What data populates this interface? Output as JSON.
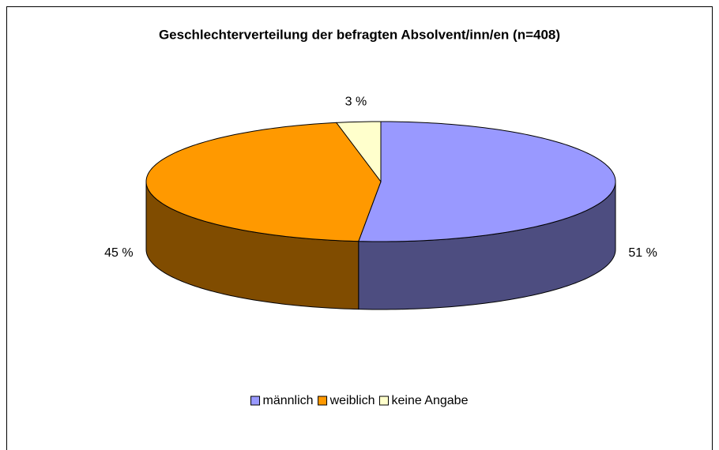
{
  "chart_data": {
    "type": "pie3d",
    "title": "Geschlechterverteilung der befragten Absolvent/inn/en (n=408)",
    "categories": [
      "männlich",
      "weiblich",
      "keine Angabe"
    ],
    "values": [
      51,
      45,
      3
    ],
    "value_labels": [
      "51 %",
      "45 %",
      "3 %"
    ],
    "colors": [
      "#9999ff",
      "#ff9900",
      "#ffffcc"
    ],
    "side_colors": [
      "#4d4d80",
      "#804c00",
      "#80806a"
    ],
    "legend": "bottom"
  }
}
